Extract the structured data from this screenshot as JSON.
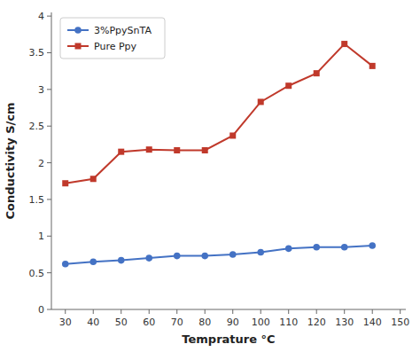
{
  "chart_data": {
    "type": "line",
    "x_label": "Temprature °C",
    "y_label": "Conductivity S/cm",
    "x": [
      30,
      40,
      50,
      60,
      70,
      80,
      90,
      100,
      110,
      120,
      130,
      140
    ],
    "series": [
      {
        "name": "3%PpySnTA",
        "color": "#4472c4",
        "marker": "circle",
        "values": [
          0.62,
          0.65,
          0.67,
          0.7,
          0.73,
          0.73,
          0.75,
          0.78,
          0.83,
          0.85,
          0.85,
          0.87
        ]
      },
      {
        "name": "Pure Ppy",
        "color": "#c0392b",
        "marker": "square",
        "values": [
          1.72,
          1.78,
          2.15,
          2.18,
          2.17,
          2.17,
          2.37,
          2.83,
          3.05,
          3.22,
          3.62,
          3.32
        ]
      }
    ],
    "xlim": [
      25,
      152
    ],
    "ylim": [
      0,
      4.05
    ],
    "xticks": [
      30,
      40,
      50,
      60,
      70,
      80,
      90,
      100,
      110,
      120,
      130,
      140,
      150
    ],
    "yticks": [
      0,
      0.5,
      1.0,
      1.5,
      2.0,
      2.5,
      3.0,
      3.5,
      4.0
    ],
    "grid": false,
    "legend": "upper left"
  }
}
